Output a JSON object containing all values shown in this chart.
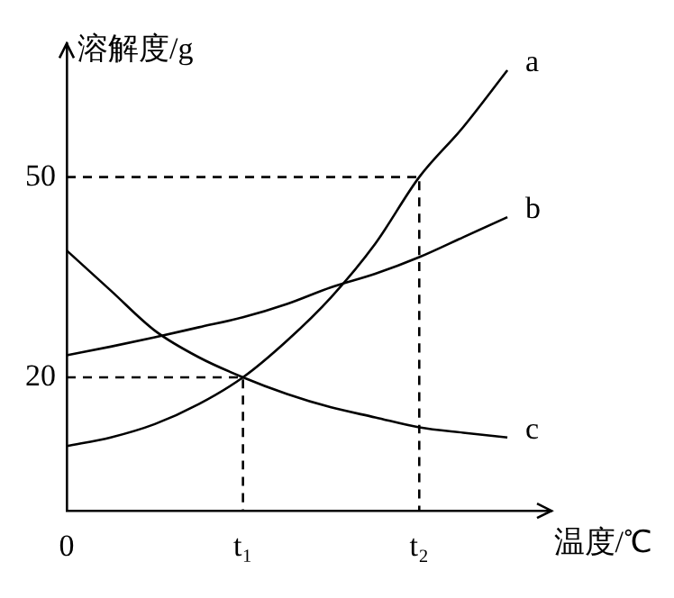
{
  "chart_data": {
    "type": "line",
    "xlabel": "温度/℃",
    "ylabel": "溶解度/g",
    "categories": [
      "0",
      null,
      null,
      null,
      "t₁",
      null,
      null,
      null,
      "t₂",
      null,
      null,
      null
    ],
    "ylim": [
      0,
      70
    ],
    "yticks": [
      20,
      50
    ],
    "grid": false,
    "legend": false,
    "marker": "none",
    "series": [
      {
        "name": "a",
        "color": "#000000",
        "values": [
          9.7,
          11,
          13,
          16,
          20,
          25.5,
          32,
          40,
          50,
          57.5,
          66,
          null
        ]
      },
      {
        "name": "b",
        "color": "#000000",
        "values": [
          23.3,
          24.6,
          26,
          27.5,
          29,
          31,
          33.5,
          35.5,
          38,
          41,
          44,
          null
        ]
      },
      {
        "name": "c",
        "color": "#000000",
        "values": [
          39,
          33,
          27,
          23,
          20,
          17.5,
          15.5,
          14,
          12.5,
          11.7,
          11,
          null
        ]
      },
      {
        "color": "#000000",
        "line_style": "dashed",
        "x": [
          "0",
          "t₂",
          "t₂"
        ],
        "values": [
          50,
          50,
          0
        ]
      },
      {
        "color": "#000000",
        "line_style": "dashed",
        "x": [
          "0",
          "t₁",
          "t₁"
        ],
        "values": [
          20,
          20,
          0
        ]
      }
    ]
  }
}
